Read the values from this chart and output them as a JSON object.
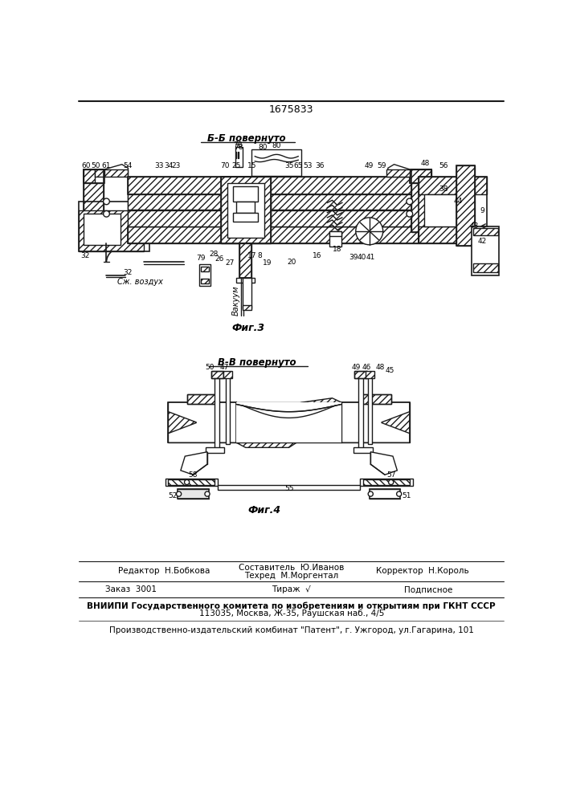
{
  "patent_number": "1675833",
  "fig3_title": "Б-Б повернуто",
  "fig3_label": "Фиг.3",
  "fig4_title": "В-В повернуто",
  "fig4_label": "Фиг.4",
  "footer_line1_left": "Редактор  Н.Бобкова",
  "footer_line1_center_top": "Составитель  Ю.Иванов",
  "footer_line1_center_bot": "Техред  М.Моргентал",
  "footer_line1_right": "Корректор  Н.Король",
  "footer_line2_left": "Заказ  3001",
  "footer_line2_center": "Тираж",
  "footer_line2_right": "Подписное",
  "footer_line3": "ВНИИПИ Государственного комитета по изобретениям и открытиям при ГКНТ СССР",
  "footer_line4": "113035, Москва, Ж-35, Раушская наб., 4/5",
  "footer_line5": "Производственно-издательский комбинат \"Патент\", г. Ужгород, ул.Гагарина, 101",
  "bg_color": "#ffffff",
  "line_color": "#1a1a1a"
}
